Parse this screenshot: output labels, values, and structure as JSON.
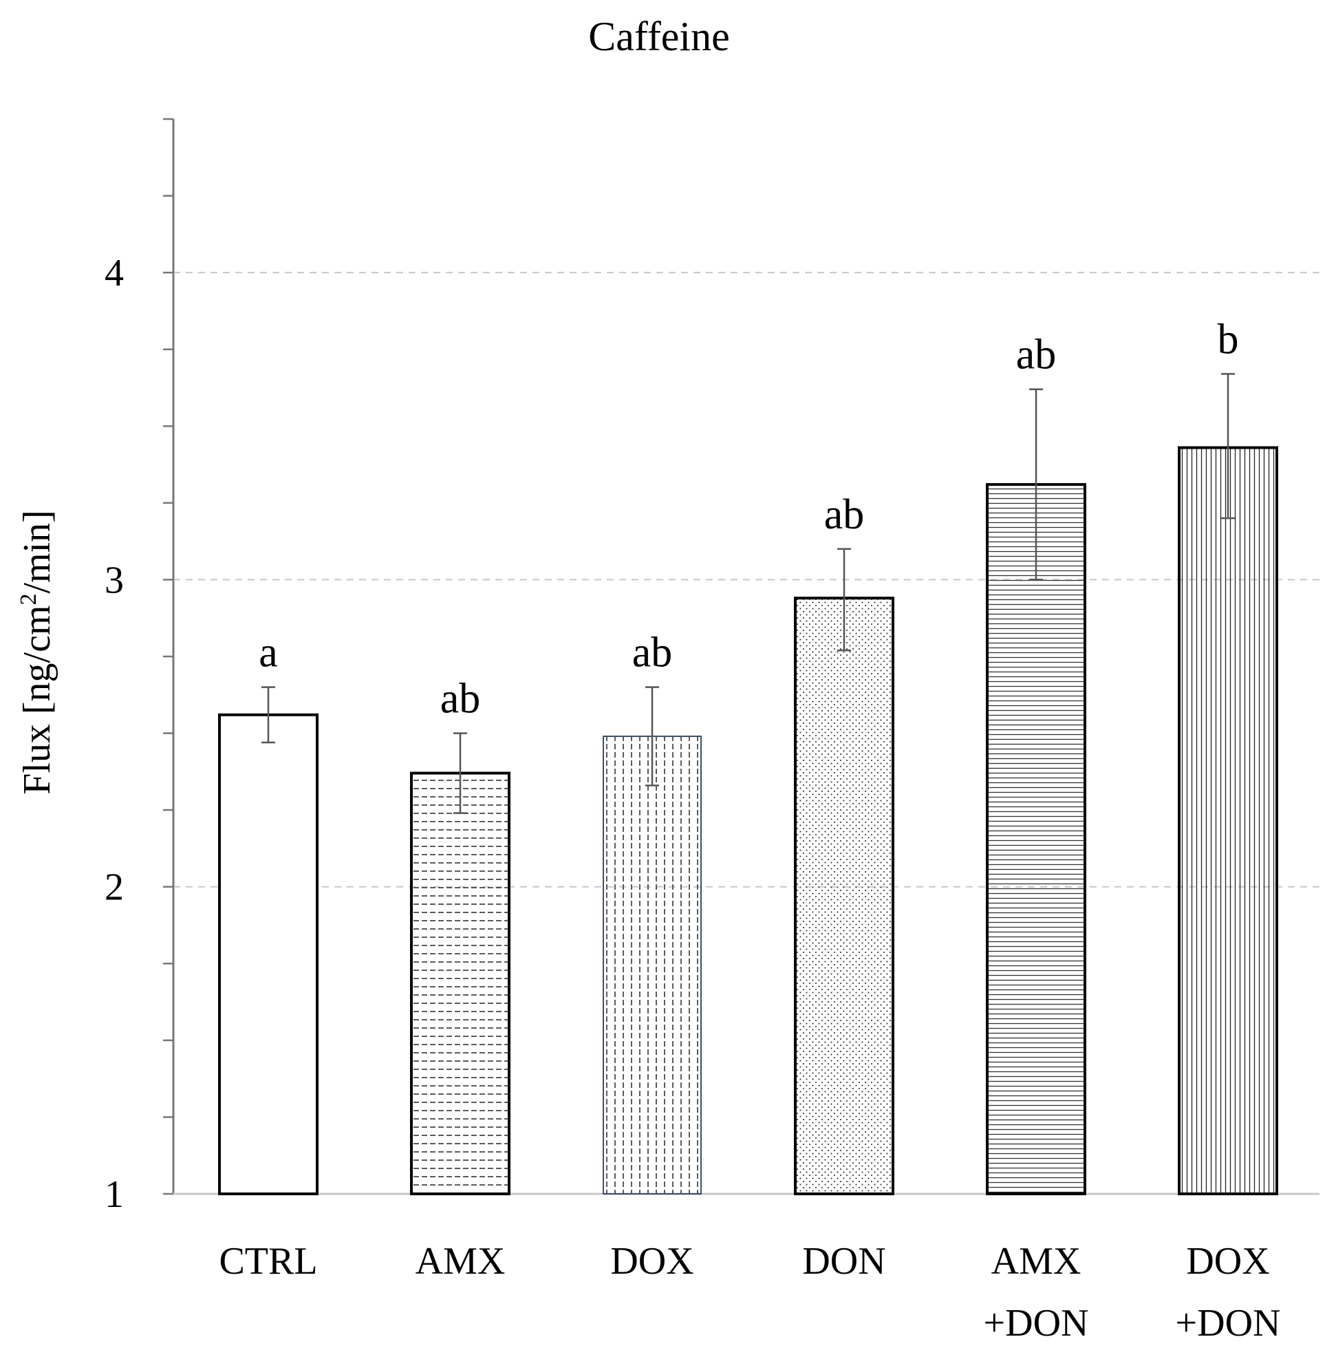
{
  "chart_data": {
    "type": "bar",
    "title": "Caffeine",
    "xlabel": "",
    "ylabel": "Flux [ng/cm²/min]",
    "ylabel_parts": {
      "pre": "Flux [ng/cm",
      "sup": "2",
      "post": "/min]"
    },
    "ylim": [
      1,
      4.5
    ],
    "yticks": [
      1,
      2,
      3,
      4
    ],
    "minor_tick_step": 0.25,
    "gridlines": [
      2,
      3,
      4
    ],
    "categories": [
      {
        "lines": [
          "CTRL"
        ],
        "value": 2.56,
        "err_low": 2.47,
        "err_high": 2.65,
        "letter": "a",
        "pattern": "none"
      },
      {
        "lines": [
          "AMX"
        ],
        "value": 2.37,
        "err_low": 2.24,
        "err_high": 2.5,
        "letter": "ab",
        "pattern": "hdash"
      },
      {
        "lines": [
          "DOX"
        ],
        "value": 2.49,
        "err_low": 2.33,
        "err_high": 2.65,
        "letter": "ab",
        "pattern": "vdash"
      },
      {
        "lines": [
          "DON"
        ],
        "value": 2.94,
        "err_low": 2.77,
        "err_high": 3.1,
        "letter": "ab",
        "pattern": "dots"
      },
      {
        "lines": [
          "AMX",
          "+DON"
        ],
        "value": 3.31,
        "err_low": 3.0,
        "err_high": 3.62,
        "letter": "ab",
        "pattern": "hlines"
      },
      {
        "lines": [
          "DOX",
          "+DON"
        ],
        "value": 3.43,
        "err_low": 3.2,
        "err_high": 3.67,
        "letter": "b",
        "pattern": "vlines"
      }
    ]
  }
}
